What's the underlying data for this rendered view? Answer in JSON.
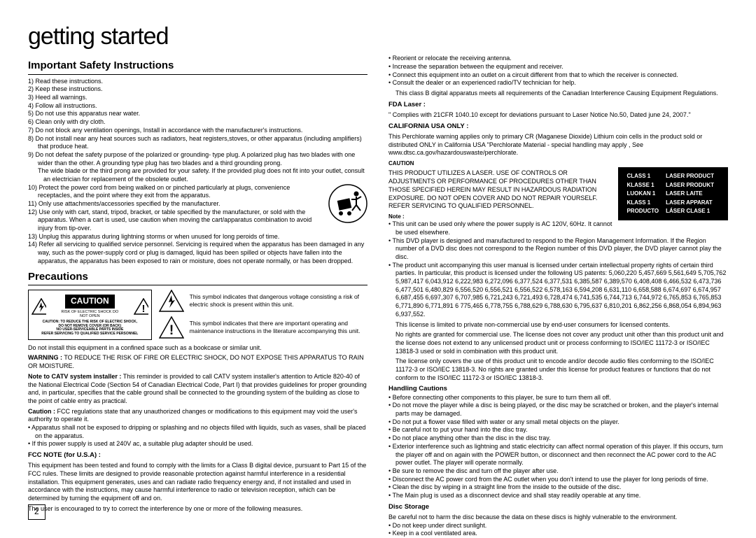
{
  "page_title": "getting started",
  "page_number": "2",
  "left": {
    "safety_title": "Important Safety Instructions",
    "instructions": [
      "1) Read these instructions.",
      "2) Keep these instructions.",
      "3) Heed all warnings.",
      "4) Follow all instructions.",
      "5) Do not use this apparatus near water.",
      "6) Clean only with dry cloth.",
      "7) Do not block any ventilation openings, Install in accordance with the manufacturer's instructions.",
      "8) Do not install near any heat sources such as radiators, heat registers,stoves, or other apparatus (including amplifiers) that produce heat.",
      "9) Do not defeat the safety purpose of the polarized or grounding- type plug. A polarized plug has two blades with one wider than the other. A grounding type plug has two blades and a third grounding prong.",
      "The wide blade or the third prong are provided for your safety. If the provided plug does not fit into your  outlet, consult an electrician for replacement of the obsolete outlet.",
      "10) Protect the power cord from being walked on or pinched particularly at plugs, convenience receptacles, and the point where they exit from the apparatus.",
      "11) Only use attachments/accessories specified by the manufacturer.",
      "12) Use only with cart, stand, tripod, bracket, or table specified by the manufacturer, or sold with the apparatus. When a cart is used, use caution when moving the cart/apparatus combination to avoid injury from tip-over.",
      "13) Unplug this apparatus during lightning storms or when unused for long peroids of time.",
      "14) Refer all servicing to qualified service personnel. Servicing is required when the apparatus has been damaged in any way, such as the power-supply cord or plug is damaged, liquid has been spilled or objects have fallen into the apparatus, the apparatus has been exposed to rain or moisture, does not operate normally, or has been dropped."
    ],
    "precautions_title": "Precautions",
    "caution_band": "CAUTION",
    "caution_risk": "RISK OF ELECTRIC SHOCK DO NOT OPEN",
    "caution_lines": [
      "CAUTION: TO REDUCE THE RISK OF ELECTRIC SHOCK,",
      "DO NOT REMOVE COVER (OR BACK)",
      "NO USER-SERVICEABLE PARTS INSIDE",
      "REFER SERVICING TO QUALIFIED SERVICE PERSONNEL"
    ],
    "symbol1": "This symbol indicates that dangerous voltage consisting a risk of electric shock is present within this unit.",
    "symbol2": "This symbol indicates that there are important operating and maintenance instructions in the literature accompanying this unit.",
    "confined": "Do not install this equipment in a confined space such as a bookcase or similar unit.",
    "warning_label": "WARNING :",
    "warning_text": " TO REDUCE THE RISK OF FIRE OR ELECTRIC SHOCK, DO NOT EXPOSE THIS APPARATUS TO RAIN OR MOISTURE.",
    "catv_label": "Note to CATV system installer :",
    "catv_text": " This reminder is provided to call CATV system installer's attention to Article 820-40 of the National Electrical Code (Section 54 of Canadian Electrical Code, Part I) that provides guidelines for proper grounding and, in particular, specifies that the cable ground shall be connected to the grounding system of the building as close to the point of cable entry as practical.",
    "caution_label": "Caution :",
    "caution_text": " FCC regulations state that any unauthorized changes or modifications to this equipment may void the user's authority to operate it.",
    "bullets1": [
      "Apparatus shall not be exposed to dripping or splashing and no objects filled with liquids, such as vases, shall be placed on the apparatus.",
      "If this power supply is used at 240V ac, a suitable plug adapter should be used."
    ],
    "fcc_title": "FCC NOTE (for U.S.A) :",
    "fcc_text": "This equipment has been tested and found to comply with the limits for a Class B digital device, pursuant to Part 15 of the FCC rules. These limits are designed to provide reasonable protection against harmful interference in a residential installation. This equipment generates, uses and can radiate radio frequency energy and, if not installed and used in accordance with the instructions, may cause harmful interference to radio or television reception, which can be determined by turning the equipment off and on.",
    "fcc_text2": "The user is encouraged to try to correct the interference by one or more of the following measures."
  },
  "right": {
    "bullets_top": [
      "Reorient or relocate the receiving antenna.",
      "Increase the separation between the equipment and receiver.",
      "Connect this equipment into an outlet on a circuit different from that to which the receiver is connected.",
      "Consult the dealer or an experienced radio/TV technician for help."
    ],
    "class_b": "This class B digital apparatus meets all requirements of the Canadian Interference Causing Equipment Regulations.",
    "fda_title": "FDA Laser :",
    "fda_text": "\" Complies with 21CFR 1040.10 except for deviations pursuant to Laser Notice No.50, Dated june 24, 2007.\"",
    "california_title": "CALIFORNIA USA ONLY :",
    "california_text": "This Perchlorate warning applies only to primary CR (Maganese Dioxide) Lithium coin cells in the product sold or distributed ONLY in California USA \"Perchlorate Material - special handling may apply , See www.dtsc.ca.gov/hazardouswaste/perchlorate.",
    "caution2_title": "CAUTION",
    "caution2_text": "THIS PRODUCT UTILIZES A LASER. USE OF CONTROLS OR ADJUSTMENTS OR PERFORMANCE OF PROCEDURES OTHER THAN THOSE SPECIFIED HEREIN MAY RESULT IN HAZARDOUS RADIATION EXPOSURE. DO NOT OPEN COVER AND DO NOT REPAIR YOURSELF. REFER SERVICING TO QUALIFIED PERSONNEL.",
    "laser_table": [
      [
        "CLASS 1",
        "LASER PRODUCT"
      ],
      [
        "KLASSE 1",
        "LASER PRODUKT"
      ],
      [
        "LUOKAN 1",
        "LASER LAITE"
      ],
      [
        "KLASS 1",
        "LASER APPARAT"
      ],
      [
        "PRODUCTO",
        "LÁSER CLASE 1"
      ]
    ],
    "note_title": "Note :",
    "note_bullets": [
      "This unit can be used only where the power supply is AC 120V, 60Hz. It cannot be used elsewhere.",
      "This DVD player is designed and manufactured to respond to the Region Management Information. If the Region number of a DVD disc does not correspond to the Region number of this DVD player, the DVD player cannot play the disc.",
      "The product unit accompanying this user manual is licensed under certain intellectual property rights of certain third parties. In particular, this product is licensed under the following US patents: 5,060,220 5,457,669 5,561,649 5,705,762 5,987,417 6,043,912 6,222,983 6,272,096 6,377,524 6,377,531 6,385,587 6,389,570 6,408,408 6,466,532 6,473,736 6,477,501 6,480,829 6,556,520 6,556,521 6,556,522 6,578,163 6,594,208 6,631,110 6,658,588 6,674,697 6,674,957 6,687,455 6,697,307 6,707,985 6,721,243 6,721,493 6,728,474 6,741,535 6,744,713 6,744,972 6,765,853 6,765,853 6,771,890 6,771,891 6 775,465 6,778,755 6,788,629 6,788,630 6,795,637 6,810,201 6,862,256 6,868,054 6,894,963 6,937,552."
    ],
    "license1": "This license is limited to private non-commercial use by end-user consumers for licensed contents.",
    "license2": "No rights are granted for commercial use. The license does not cover any product unit other than this product unit and the license does not extend to any unlicensed product unit or process conforming to ISO/IEC 11172-3 or ISO/IEC 13818-3 used or sold in combination with this product unit.",
    "license3": "The license only covers the use of this product unit to encode and/or decode audio files conforming to the ISO/IEC 11172-3 or ISO/IEC 13818-3. No rights are granted under this license for product features or functions that do not conform to the ISO/IEC 11172-3 or ISO/IEC 13818-3.",
    "handling_title": "Handling Cautions",
    "handling_bullets": [
      "Before connecting other components to this player, be sure to turn them all off.",
      "Do not move the player while a disc is being played, or the disc may be scratched or broken, and the player's internal parts may be damaged.",
      "Do not put a flower vase filled with water or any small metal objects on the player.",
      "Be careful not to put your hand into the disc tray.",
      "Do not place anything other than the disc in the disc tray.",
      "Exterior interference such as lightning and static electricity can affect normal operation of this player. If this occurs, turn the player off and on again with the POWER button, or disconnect and then reconnect the AC power cord to the AC power outlet. The player will operate normally.",
      "Be sure to remove the disc and turn off the player after use.",
      "Disconnect the AC power cord from the AC outlet when you don't intend to use the player for long periods of time.",
      "Clean the disc by wiping in a straight line from the inside to the outside of the disc.",
      "The Main plug is used as a disconnect device and shall stay readily operable at any time."
    ],
    "storage_title": "Disc Storage",
    "storage_text": "Be careful not to harm the disc because the data on these discs is highly vulnerable to the environment.",
    "storage_bullets": [
      "Do not keep under direct sunlight.",
      "Keep in a cool ventilated area."
    ]
  }
}
